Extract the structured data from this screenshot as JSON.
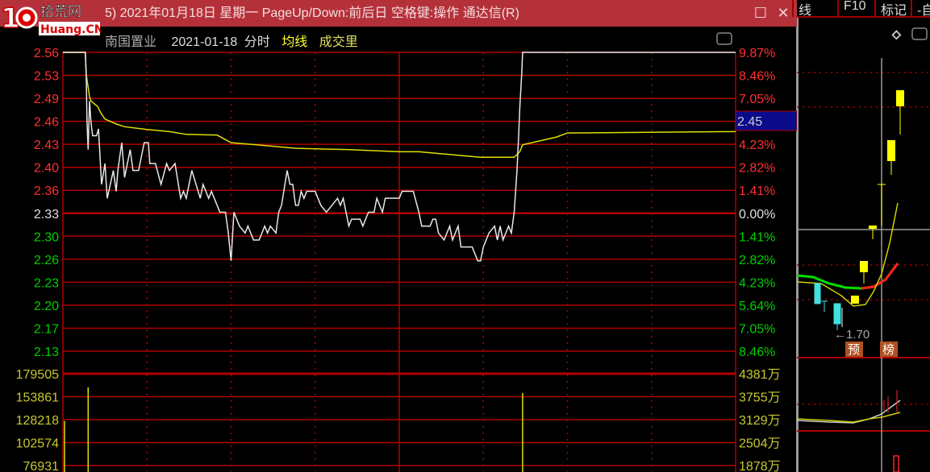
{
  "window": {
    "title": "5) 2021年01月18日 星期一 PageUp/Down:前后日 空格键:操作 通达信(R)",
    "maximize_icon": "square-icon",
    "close_icon": "x-icon"
  },
  "watermark": {
    "number": "10",
    "text": "拾荒网",
    "domain": "Huang.CN"
  },
  "toptabs": [
    "线",
    "F10",
    "标记",
    "-自"
  ],
  "header": {
    "stock_name": "南国置业",
    "date": "2021-01-18",
    "mode": "分时",
    "avg_label": "均线",
    "vol_label": "成交里"
  },
  "colors": {
    "up": "#ff3030",
    "down": "#00d000",
    "flat": "#e0e0e0",
    "volume_axis": "#c8c830",
    "grid": "#b00000",
    "price_line": "#e8e8e8",
    "avg_line": "#e0e000",
    "highlight_bg": "#0a0a8a"
  },
  "current_price_label": "2.45",
  "chart_data": [
    {
      "type": "line",
      "title": "",
      "prev_close": 2.33,
      "ylim": [
        2.13,
        2.56
      ],
      "xlim": [
        0,
        240
      ],
      "price_ticks": [
        "2.56",
        "2.53",
        "2.49",
        "2.46",
        "2.43",
        "2.40",
        "2.36",
        "2.33",
        "2.30",
        "2.26",
        "2.23",
        "2.20",
        "2.17",
        "2.13"
      ],
      "pct_ticks": [
        "9.87%",
        "8.46%",
        "7.05%",
        "5.64%",
        "4.23%",
        "2.82%",
        "1.41%",
        "0.00%",
        "1.41%",
        "2.82%",
        "4.23%",
        "5.64%",
        "7.05%",
        "8.46%"
      ],
      "series": [
        {
          "name": "",
          "key": "price",
          "points": [
            [
              0,
              2.56
            ],
            [
              8,
              2.56
            ],
            [
              8.3,
              2.53
            ],
            [
              8.6,
              2.46
            ],
            [
              9,
              2.42
            ],
            [
              9.5,
              2.49
            ],
            [
              10,
              2.46
            ],
            [
              10.6,
              2.44
            ],
            [
              12,
              2.44
            ],
            [
              12.7,
              2.45
            ],
            [
              13.5,
              2.39
            ],
            [
              13.8,
              2.37
            ],
            [
              15,
              2.4
            ],
            [
              15.8,
              2.35
            ],
            [
              18,
              2.39
            ],
            [
              19,
              2.36
            ],
            [
              19.6,
              2.39
            ],
            [
              21,
              2.43
            ],
            [
              22,
              2.38
            ],
            [
              24,
              2.42
            ],
            [
              25,
              2.39
            ],
            [
              27,
              2.39
            ],
            [
              29,
              2.43
            ],
            [
              30.5,
              2.43
            ],
            [
              31,
              2.4
            ],
            [
              33,
              2.4
            ],
            [
              35,
              2.37
            ],
            [
              37,
              2.4
            ],
            [
              38,
              2.39
            ],
            [
              40,
              2.4
            ],
            [
              42,
              2.35
            ],
            [
              43,
              2.36
            ],
            [
              44,
              2.35
            ],
            [
              46,
              2.39
            ],
            [
              49,
              2.35
            ],
            [
              50,
              2.37
            ],
            [
              52,
              2.35
            ],
            [
              53,
              2.36
            ],
            [
              56,
              2.33
            ],
            [
              58,
              2.33
            ],
            [
              59,
              2.3
            ],
            [
              60,
              2.26
            ],
            [
              61,
              2.33
            ],
            [
              63,
              2.31
            ],
            [
              65,
              2.3
            ],
            [
              66,
              2.31
            ],
            [
              68,
              2.29
            ],
            [
              70,
              2.29
            ],
            [
              72,
              2.31
            ],
            [
              73,
              2.3
            ],
            [
              74,
              2.31
            ],
            [
              76,
              2.3
            ],
            [
              77,
              2.33
            ],
            [
              78,
              2.34
            ],
            [
              80,
              2.39
            ],
            [
              81,
              2.37
            ],
            [
              82,
              2.37
            ],
            [
              83,
              2.34
            ],
            [
              84,
              2.34
            ],
            [
              85,
              2.36
            ],
            [
              86,
              2.35
            ],
            [
              87,
              2.36
            ],
            [
              90,
              2.36
            ],
            [
              92,
              2.34
            ],
            [
              94,
              2.33
            ],
            [
              96,
              2.34
            ],
            [
              98,
              2.35
            ],
            [
              99,
              2.34
            ],
            [
              100,
              2.35
            ],
            [
              102,
              2.31
            ],
            [
              103,
              2.32
            ],
            [
              106,
              2.32
            ],
            [
              107,
              2.31
            ],
            [
              109,
              2.33
            ],
            [
              111,
              2.33
            ],
            [
              112,
              2.35
            ],
            [
              114,
              2.33
            ],
            [
              115,
              2.35
            ],
            [
              120,
              2.35
            ],
            [
              121,
              2.36
            ],
            [
              125,
              2.36
            ],
            [
              127,
              2.33
            ],
            [
              128,
              2.31
            ],
            [
              131,
              2.31
            ],
            [
              132,
              2.32
            ],
            [
              133,
              2.32
            ],
            [
              134,
              2.3
            ],
            [
              136,
              2.29
            ],
            [
              138,
              2.31
            ],
            [
              139,
              2.29
            ],
            [
              141,
              2.31
            ],
            [
              142,
              2.28
            ],
            [
              146,
              2.28
            ],
            [
              148,
              2.26
            ],
            [
              149,
              2.26
            ],
            [
              150,
              2.28
            ],
            [
              152,
              2.3
            ],
            [
              154,
              2.31
            ],
            [
              155,
              2.29
            ],
            [
              156,
              2.31
            ],
            [
              157,
              2.29
            ],
            [
              159,
              2.31
            ],
            [
              160,
              2.3
            ],
            [
              161,
              2.33
            ],
            [
              161.5,
              2.36
            ],
            [
              162,
              2.39
            ],
            [
              162.6,
              2.44
            ],
            [
              163,
              2.48
            ],
            [
              163.7,
              2.53
            ],
            [
              164,
              2.56
            ],
            [
              240,
              2.56
            ]
          ]
        },
        {
          "name": "均线",
          "key": "avg",
          "points": [
            [
              0,
              2.56
            ],
            [
              8,
              2.56
            ],
            [
              8.3,
              2.528
            ],
            [
              9,
              2.51
            ],
            [
              9.5,
              2.496
            ],
            [
              10,
              2.49
            ],
            [
              12.4,
              2.482
            ],
            [
              13.5,
              2.473
            ],
            [
              15,
              2.464
            ],
            [
              19,
              2.457
            ],
            [
              22,
              2.453
            ],
            [
              30,
              2.449
            ],
            [
              38,
              2.446
            ],
            [
              44,
              2.442
            ],
            [
              55,
              2.441
            ],
            [
              60,
              2.43
            ],
            [
              69,
              2.427
            ],
            [
              83,
              2.422
            ],
            [
              102,
              2.42
            ],
            [
              120,
              2.417
            ],
            [
              127,
              2.417
            ],
            [
              149,
              2.409
            ],
            [
              161,
              2.409
            ],
            [
              163,
              2.417
            ],
            [
              164,
              2.427
            ],
            [
              176,
              2.438
            ],
            [
              180,
              2.444
            ],
            [
              240,
              2.446
            ]
          ]
        }
      ]
    },
    {
      "type": "bar",
      "title": "",
      "ylim": [
        0,
        179505
      ],
      "left_ticks": [
        "179505",
        "153861",
        "128218",
        "102574",
        "76931"
      ],
      "right_ticks": [
        "4381万",
        "3755万",
        "3129万",
        "2504万",
        "1878万"
      ],
      "x": [
        0,
        9,
        164
      ],
      "values": [
        126700,
        164200,
        157900
      ]
    }
  ],
  "side_chart": {
    "low_label": "←1.70",
    "badge_yu": "预",
    "badge_bang": "榜"
  }
}
